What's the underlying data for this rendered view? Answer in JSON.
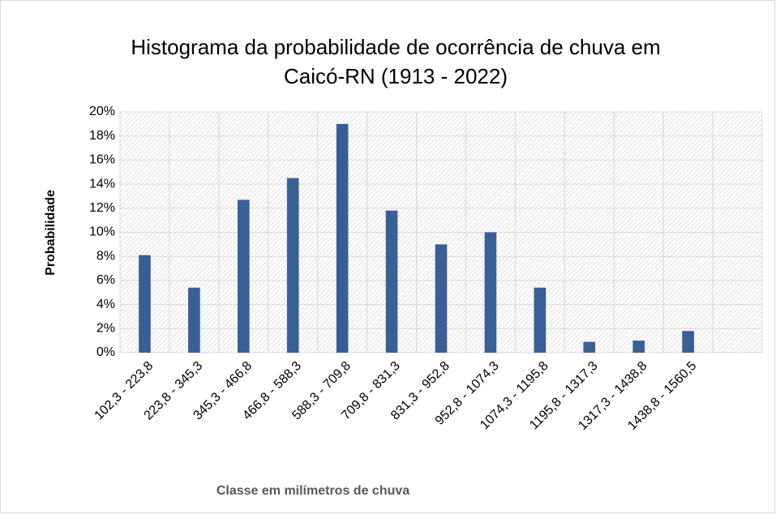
{
  "chart_data": {
    "type": "bar",
    "title": [
      "Histograma da probabilidade de ocorrência de chuva em",
      "Caicó-RN (1913 - 2022)"
    ],
    "y_label": "Probabilidade",
    "x_label": "Classe em milímetros de chuva",
    "categories": [
      "102,3 - 223,8",
      "223,8 - 345,3",
      "345,3 - 466,8",
      "466,8 - 588,3",
      "588,3 - 709,8",
      "709,8 - 831,3",
      "831,3 - 952,8",
      "952,8 - 1074,3",
      "1074,3 - 1195,8",
      "1195,8 - 1317,3",
      "1317,3 - 1438,8",
      "1438,8 - 1560,5",
      null
    ],
    "values": [
      8.1,
      5.4,
      12.7,
      14.5,
      19.0,
      11.8,
      9.0,
      10.0,
      5.4,
      0.9,
      1.0,
      1.8,
      null
    ],
    "color": "#3a5f95",
    "ylim": [
      0,
      20
    ],
    "yticks": [
      {
        "value": 0,
        "label": "0%"
      },
      {
        "value": 2,
        "label": "2%"
      },
      {
        "value": 4,
        "label": "4%"
      },
      {
        "value": 6,
        "label": "6%"
      },
      {
        "value": 8,
        "label": "8%"
      },
      {
        "value": 10,
        "label": "10%"
      },
      {
        "value": 12,
        "label": "12%"
      },
      {
        "value": 14,
        "label": "14%"
      },
      {
        "value": 16,
        "label": "16%"
      },
      {
        "value": 18,
        "label": "18%"
      },
      {
        "value": 20,
        "label": "20%"
      }
    ],
    "grid": true
  }
}
